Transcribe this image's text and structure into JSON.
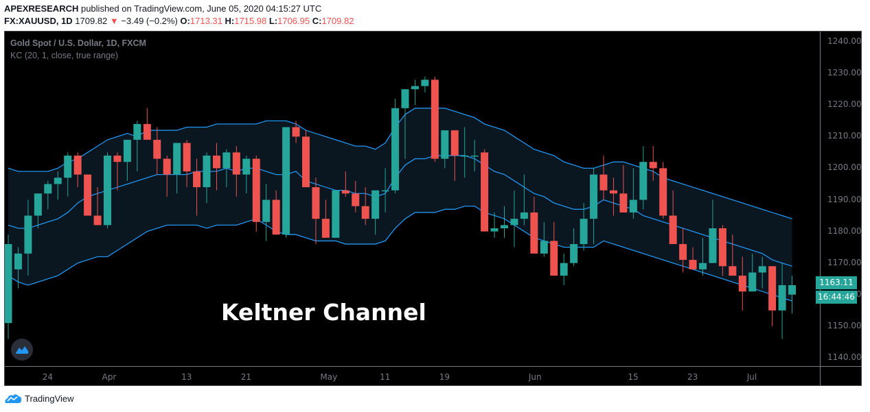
{
  "header": {
    "line1_author": "APEXRESEARCH",
    "line1_rest": " published on TradingView.com, June 05, 2020 04:15:27 UTC",
    "symbol": "FX:XAUUSD, 1D",
    "last": " 1709.82",
    "change_arrow": "▼",
    "change": " −3.49 (−0.2%) ",
    "o_label": "O:",
    "o": "1713.31",
    "h_label": " H:",
    "h": "1715.98",
    "l_label": " L:",
    "l": "1706.95",
    "c_label": " C:",
    "c": "1709.82"
  },
  "legend": {
    "title": "Gold Spot / U.S. Dollar, 1D, FXCM",
    "indicator": "KC (20, 1, close, true range)"
  },
  "overlay_title": "Keltner Channel",
  "price_badge": {
    "price": "1163.11",
    "countdown": "16:44:46"
  },
  "footer": {
    "brand": "TradingView"
  },
  "colors": {
    "up": "#26a69a",
    "down": "#ef5350",
    "band": "#2196f3",
    "band_fill": "#0a1620",
    "background": "#000000",
    "axis_text": "#787b86"
  },
  "chart_data": {
    "type": "candlestick",
    "title": "Gold Spot / U.S. Dollar, 1D, FXCM",
    "indicator": "KC (20, 1, close, true range)",
    "ylim": [
      1136,
      1244
    ],
    "y_ticks": [
      1140,
      1150,
      1160,
      1170,
      1180,
      1190,
      1200,
      1210,
      1220,
      1230,
      1240
    ],
    "x_ticks": [
      {
        "label": "24",
        "index": 4
      },
      {
        "label": "Apr",
        "index": 10
      },
      {
        "label": "13",
        "index": 18
      },
      {
        "label": "21",
        "index": 24
      },
      {
        "label": "May",
        "index": 32
      },
      {
        "label": "11",
        "index": 38
      },
      {
        "label": "19",
        "index": 44
      },
      {
        "label": "Jun",
        "index": 53
      },
      {
        "label": "15",
        "index": 63
      },
      {
        "label": "23",
        "index": 69
      },
      {
        "label": "Jul",
        "index": 75
      }
    ],
    "candles": [
      [
        1151,
        1179,
        1146,
        1176
      ],
      [
        1168,
        1175,
        1162,
        1173
      ],
      [
        1173,
        1190,
        1166,
        1185
      ],
      [
        1185,
        1192,
        1181,
        1192
      ],
      [
        1192,
        1196,
        1187,
        1195
      ],
      [
        1195,
        1199,
        1190,
        1197
      ],
      [
        1197,
        1205,
        1191,
        1204
      ],
      [
        1204,
        1205,
        1194,
        1198
      ],
      [
        1198,
        1198,
        1185,
        1185
      ],
      [
        1185,
        1194,
        1183,
        1182
      ],
      [
        1182,
        1205,
        1181,
        1204
      ],
      [
        1204,
        1205,
        1193,
        1202
      ],
      [
        1202,
        1206,
        1196,
        1209
      ],
      [
        1209,
        1215,
        1199,
        1214
      ],
      [
        1214,
        1219,
        1210,
        1209
      ],
      [
        1209,
        1213,
        1198,
        1203
      ],
      [
        1203,
        1204,
        1191,
        1198
      ],
      [
        1198,
        1208,
        1192,
        1208
      ],
      [
        1208,
        1209,
        1194,
        1199
      ],
      [
        1199,
        1203,
        1185,
        1194
      ],
      [
        1194,
        1205,
        1189,
        1204
      ],
      [
        1204,
        1208,
        1193,
        1200
      ],
      [
        1200,
        1206,
        1194,
        1205
      ],
      [
        1205,
        1207,
        1191,
        1198
      ],
      [
        1198,
        1204,
        1192,
        1203
      ],
      [
        1203,
        1204,
        1180,
        1183
      ],
      [
        1183,
        1195,
        1177,
        1190
      ],
      [
        1190,
        1193,
        1183,
        1179
      ],
      [
        1179,
        1210,
        1178,
        1213
      ],
      [
        1213,
        1215,
        1208,
        1210
      ],
      [
        1210,
        1212,
        1200,
        1194
      ],
      [
        1194,
        1197,
        1176,
        1184
      ],
      [
        1184,
        1190,
        1179,
        1178
      ],
      [
        1178,
        1193,
        1178,
        1193
      ],
      [
        1193,
        1199,
        1191,
        1192
      ],
      [
        1192,
        1196,
        1186,
        1188
      ],
      [
        1188,
        1194,
        1182,
        1184
      ],
      [
        1184,
        1193,
        1179,
        1193
      ],
      [
        1193,
        1200,
        1186,
        1193
      ],
      [
        1193,
        1222,
        1192,
        1219
      ],
      [
        1219,
        1225,
        1203,
        1225
      ],
      [
        1225,
        1228,
        1220,
        1226
      ],
      [
        1226,
        1229,
        1224,
        1228
      ],
      [
        1228,
        1229,
        1202,
        1203
      ],
      [
        1203,
        1211,
        1200,
        1212
      ],
      [
        1212,
        1210,
        1196,
        1204
      ],
      [
        1204,
        1213,
        1197,
        1204
      ],
      [
        1204,
        1209,
        1199,
        1204
      ],
      [
        1205,
        1206,
        1182,
        1180
      ],
      [
        1180,
        1186,
        1178,
        1181
      ],
      [
        1181,
        1188,
        1178,
        1182
      ],
      [
        1182,
        1193,
        1175,
        1184
      ],
      [
        1184,
        1198,
        1182,
        1186
      ],
      [
        1186,
        1191,
        1175,
        1173
      ],
      [
        1173,
        1183,
        1172,
        1177
      ],
      [
        1177,
        1183,
        1168,
        1166
      ],
      [
        1166,
        1173,
        1163,
        1170
      ],
      [
        1170,
        1181,
        1169,
        1176
      ],
      [
        1176,
        1189,
        1174,
        1184
      ],
      [
        1184,
        1200,
        1176,
        1198
      ],
      [
        1198,
        1204,
        1190,
        1193
      ],
      [
        1193,
        1197,
        1185,
        1192
      ],
      [
        1192,
        1201,
        1190,
        1186
      ],
      [
        1186,
        1200,
        1184,
        1190
      ],
      [
        1190,
        1207,
        1187,
        1202
      ],
      [
        1202,
        1207,
        1196,
        1200
      ],
      [
        1200,
        1202,
        1184,
        1185
      ],
      [
        1185,
        1193,
        1178,
        1176
      ],
      [
        1176,
        1181,
        1167,
        1171
      ],
      [
        1171,
        1175,
        1168,
        1168
      ],
      [
        1168,
        1178,
        1166,
        1170
      ],
      [
        1170,
        1190,
        1173,
        1181
      ],
      [
        1181,
        1182,
        1166,
        1169
      ],
      [
        1169,
        1179,
        1166,
        1166
      ],
      [
        1166,
        1172,
        1155,
        1161
      ],
      [
        1161,
        1173,
        1161,
        1167
      ],
      [
        1167,
        1172,
        1162,
        1169
      ],
      [
        1169,
        1168,
        1150,
        1155
      ],
      [
        1155,
        1170,
        1146,
        1163
      ],
      [
        1160,
        1166,
        1154,
        1163
      ]
    ],
    "kc_upper": [
      1200,
      1199,
      1199,
      1199,
      1199,
      1200,
      1202,
      1203,
      1205,
      1207,
      1209,
      1210,
      1211,
      1210,
      1212,
      1212,
      1212,
      1212,
      1213,
      1213,
      1213,
      1214,
      1214,
      1214,
      1214,
      1214,
      1215,
      1215,
      1215,
      1214,
      1212,
      1211,
      1210,
      1209,
      1208,
      1207,
      1207,
      1206,
      1208,
      1213,
      1217,
      1219,
      1219,
      1219,
      1219,
      1218,
      1217,
      1216,
      1214,
      1213,
      1212,
      1210,
      1208,
      1206,
      1205,
      1204,
      1202,
      1201,
      1200,
      1200,
      1201,
      1202,
      1202,
      1201,
      1200,
      1199,
      1197,
      1196,
      1195,
      1194,
      1193,
      1192,
      1191,
      1190,
      1189,
      1188,
      1187,
      1186,
      1185,
      1184
    ],
    "kc_middle": [
      1182,
      1181,
      1181,
      1182,
      1183,
      1184,
      1186,
      1189,
      1191,
      1192,
      1193,
      1194,
      1195,
      1196,
      1197,
      1198,
      1198,
      1198,
      1198,
      1199,
      1199,
      1199,
      1200,
      1199,
      1200,
      1200,
      1199,
      1198,
      1198,
      1199,
      1196,
      1195,
      1194,
      1193,
      1193,
      1192,
      1192,
      1191,
      1192,
      1197,
      1201,
      1203,
      1203,
      1204,
      1204,
      1204,
      1204,
      1203,
      1201,
      1199,
      1198,
      1196,
      1194,
      1192,
      1191,
      1189,
      1188,
      1187,
      1187,
      1188,
      1190,
      1189,
      1188,
      1187,
      1185,
      1184,
      1183,
      1182,
      1181,
      1180,
      1179,
      1178,
      1177,
      1176,
      1175,
      1174,
      1173,
      1171,
      1170,
      1169
    ],
    "kc_lower": [
      1166,
      1164,
      1163,
      1164,
      1165,
      1166,
      1168,
      1170,
      1171,
      1172,
      1172,
      1174,
      1176,
      1178,
      1180,
      1181,
      1182,
      1182,
      1182,
      1182,
      1181,
      1182,
      1182,
      1182,
      1183,
      1184,
      1182,
      1180,
      1179,
      1179,
      1178,
      1177,
      1177,
      1177,
      1176,
      1176,
      1176,
      1176,
      1177,
      1181,
      1184,
      1186,
      1186,
      1186,
      1187,
      1187,
      1188,
      1188,
      1186,
      1185,
      1184,
      1182,
      1180,
      1178,
      1177,
      1176,
      1175,
      1175,
      1175,
      1175,
      1177,
      1176,
      1175,
      1174,
      1173,
      1172,
      1171,
      1170,
      1169,
      1168,
      1167,
      1166,
      1165,
      1164,
      1163,
      1162,
      1161,
      1160,
      1159,
      1158
    ]
  }
}
